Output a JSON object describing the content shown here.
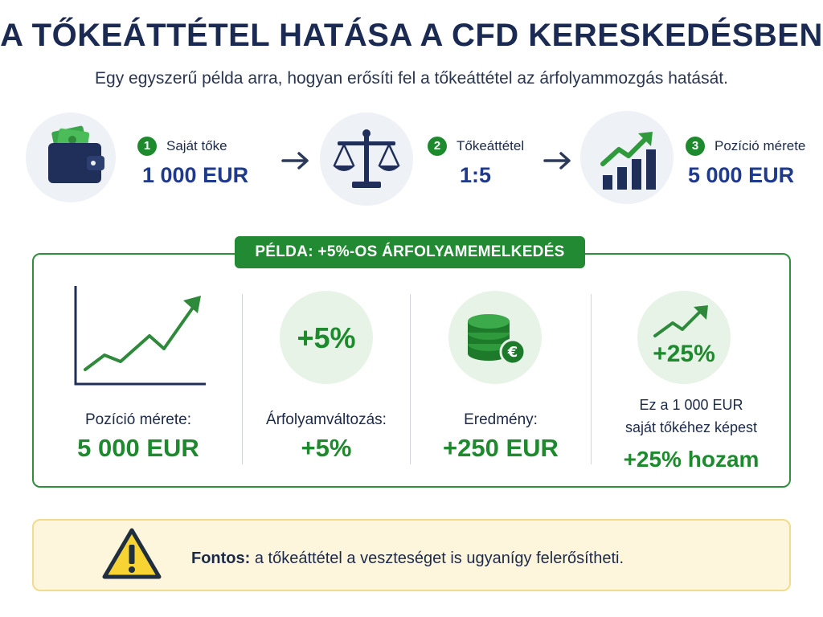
{
  "header": {
    "title": "A TŐKEÁTTÉTEL HATÁSA A CFD KERESKEDÉSBEN",
    "subtitle": "Egy egyszerű példa arra, hogyan erősíti fel a tőkeáttétel az árfolyammozgás hatását."
  },
  "steps": [
    {
      "number": "1",
      "label": "Saját tőke",
      "value": "1 000 EUR",
      "icon": "wallet-icon"
    },
    {
      "number": "2",
      "label": "Tőkeáttétel",
      "value": "1:5",
      "icon": "scales-icon"
    },
    {
      "number": "3",
      "label": "Pozíció mérete",
      "value": "5 000 EUR",
      "icon": "growth-chart-icon"
    }
  ],
  "example": {
    "banner": "PÉLDA: +5%-OS ÁRFOLYAMEMELKEDÉS",
    "columns": [
      {
        "icon": "line-chart-icon",
        "label": "Pozíció mérete:",
        "value": "5 000 EUR"
      },
      {
        "icon_text": "+5%",
        "label": "Árfolyamváltozás:",
        "value": "+5%"
      },
      {
        "icon": "coins-euro-icon",
        "label": "Eredmény:",
        "value": "+250 EUR"
      },
      {
        "icon_text": "+25%",
        "label_line1": "Ez a 1 000 EUR",
        "label_line2": "saját tőkéhez képest",
        "value": "+25% hozam"
      }
    ]
  },
  "note": {
    "strong": "Fontos:",
    "text": "a tőkeáttétel a veszteséget is ugyanígy felerősítheti.",
    "icon": "warning-icon"
  },
  "colors": {
    "navy": "#1b2a52",
    "green": "#1e8a2e",
    "blue": "#1f3a8c",
    "warning_yellow": "#f7d433"
  }
}
